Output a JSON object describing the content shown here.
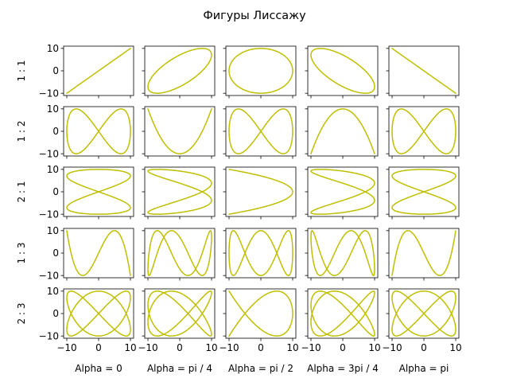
{
  "chart_data": {
    "type": "line",
    "title": "Фигуры Лиссажу",
    "curve_color": "#bfbf00",
    "amplitude": 10,
    "xlim": [
      -11,
      11
    ],
    "ylim": [
      -11,
      11
    ],
    "xticks": [
      -10,
      0,
      10
    ],
    "yticks": [
      10,
      0,
      -10
    ],
    "grid": false,
    "parametric_formula": "x = 10*sin(a*t + alpha), y = 10*sin(b*t)",
    "rows": [
      {
        "label": "1 : 1",
        "a": 1,
        "b": 1
      },
      {
        "label": "1 : 2",
        "a": 1,
        "b": 2
      },
      {
        "label": "2 : 1",
        "a": 2,
        "b": 1
      },
      {
        "label": "1 : 3",
        "a": 1,
        "b": 3
      },
      {
        "label": "2 : 3",
        "a": 2,
        "b": 3
      }
    ],
    "columns": [
      {
        "label": "Alpha = 0",
        "alpha": 0
      },
      {
        "label": "Alpha = pi / 4",
        "alpha": 0.7853981634
      },
      {
        "label": "Alpha = pi / 2",
        "alpha": 1.5707963268
      },
      {
        "label": "Alpha = 3pi / 4",
        "alpha": 2.3561944902
      },
      {
        "label": "Alpha = pi",
        "alpha": 3.1415926536
      }
    ]
  }
}
